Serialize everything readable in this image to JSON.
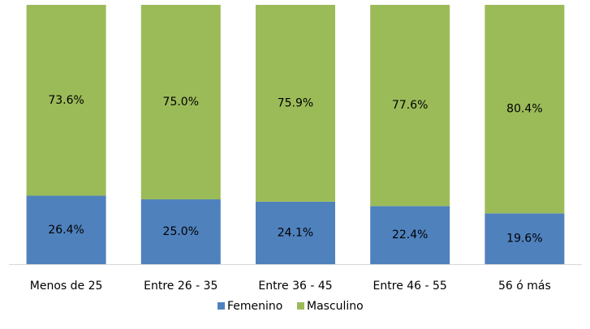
{
  "chart_data": {
    "type": "stacked_bar",
    "categories": [
      "Menos de 25",
      "Entre 26 - 35",
      "Entre 36 - 45",
      "Entre 46 - 55",
      "56 ó más"
    ],
    "series": [
      {
        "name": "Femenino",
        "color": "#4f81bd",
        "values": [
          26.4,
          25.0,
          24.1,
          22.4,
          19.6
        ],
        "value_labels": [
          "26.4%",
          "25.0%",
          "24.1%",
          "22.4%",
          "19.6%"
        ]
      },
      {
        "name": "Masculino",
        "color": "#9bbb59",
        "values": [
          73.6,
          75.0,
          75.9,
          77.6,
          80.4
        ],
        "value_labels": [
          "73.6%",
          "75.0%",
          "75.9%",
          "77.6%",
          "80.4%"
        ]
      }
    ],
    "legend": "bottom"
  }
}
